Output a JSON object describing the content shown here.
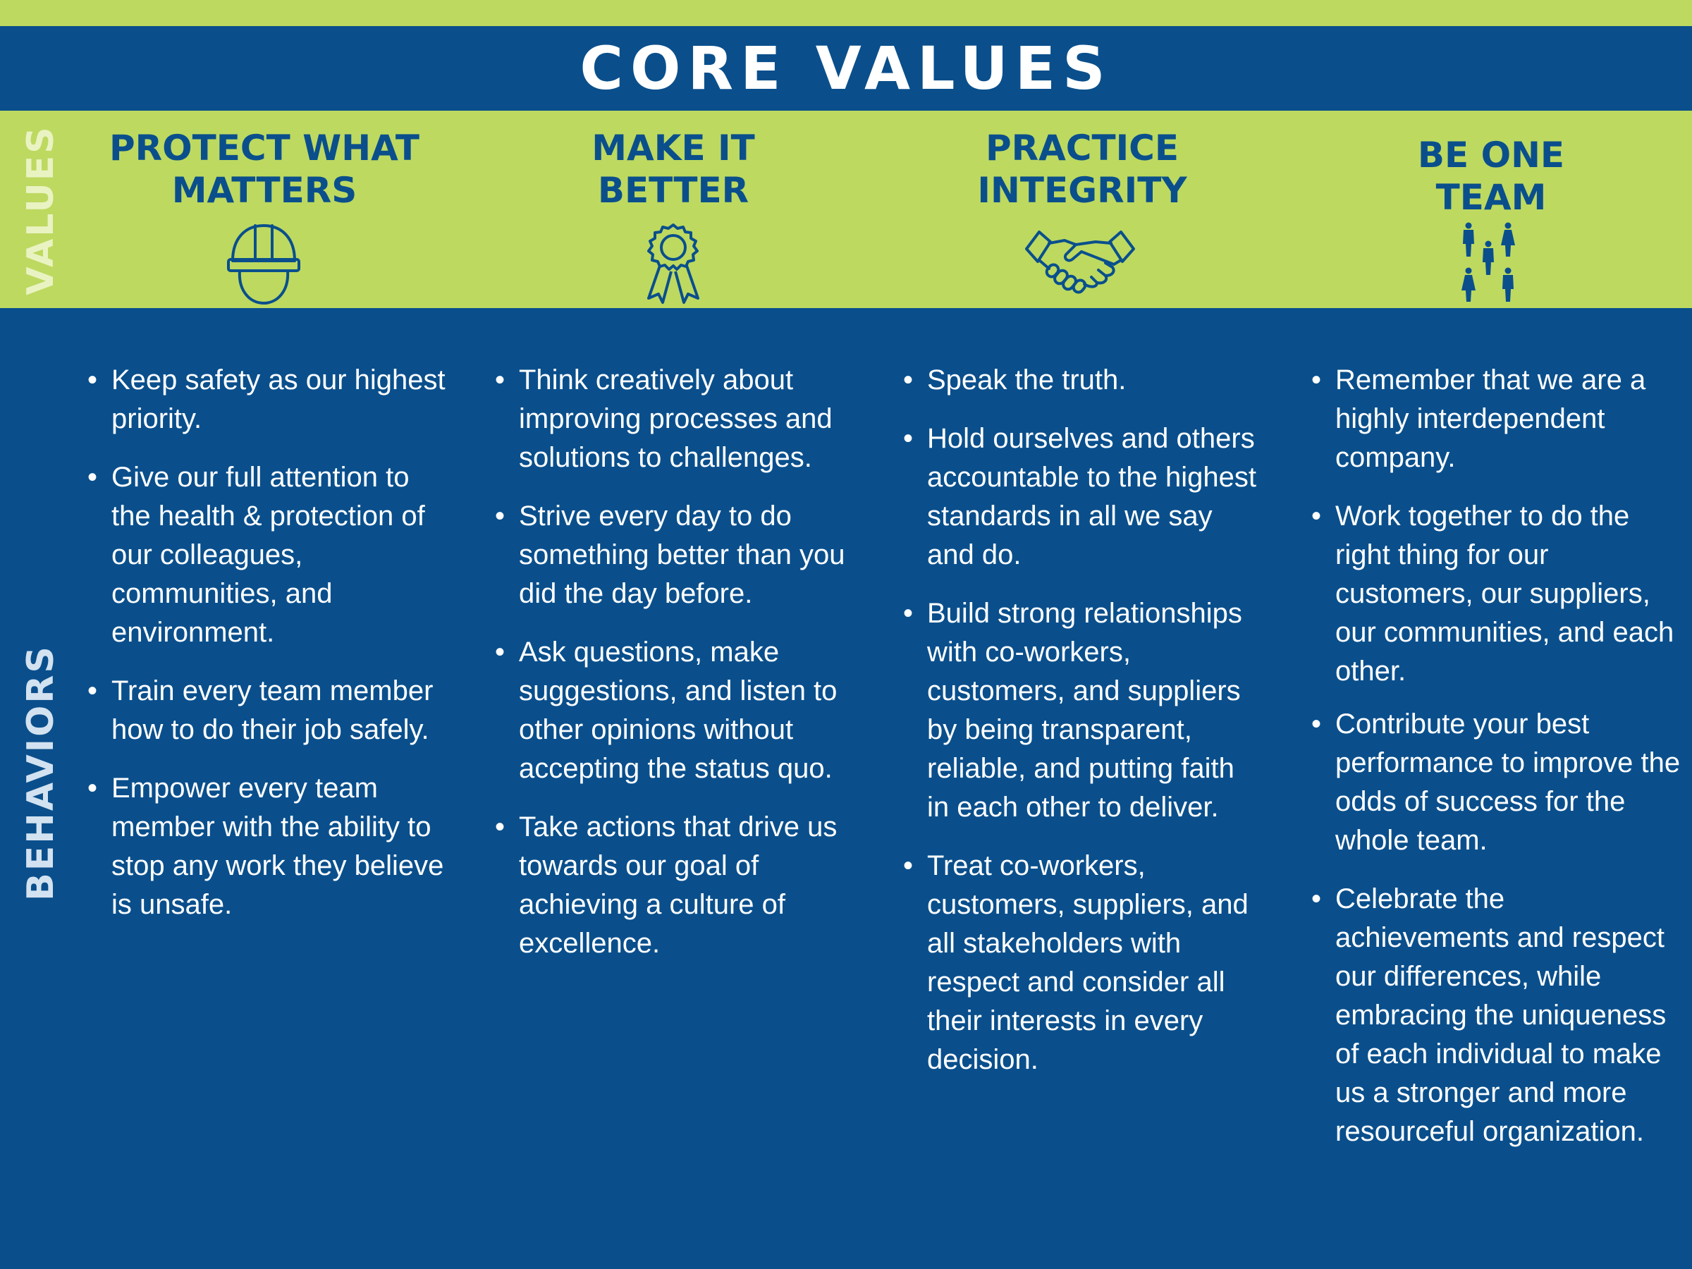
{
  "title": "CORE VALUES",
  "side_labels": {
    "values": "VALUES",
    "behaviors": "BEHAVIORS"
  },
  "colors": {
    "navy": "#0a4f8c",
    "lime": "#bdd960",
    "white": "#ffffff"
  },
  "columns": [
    {
      "value": "PROTECT WHAT\nMATTERS",
      "icon": "hard-hat-icon",
      "behaviors": [
        "Keep safety as our highest priority.",
        "Give our full attention to the health & protection of our colleagues, communities, and environment.",
        "Train every team member how to do their job safely.",
        "Empower every team member with the ability to stop any work they believe is unsafe."
      ]
    },
    {
      "value": "MAKE IT\nBETTER",
      "icon": "award-ribbon-icon",
      "behaviors": [
        "Think creatively about improving processes and solutions to challenges.",
        "Strive every day to do something better than you did the day before.",
        "Ask questions, make suggestions, and listen to other opinions without accepting the status quo.",
        "Take actions that drive us towards our goal of achieving a culture of excellence."
      ]
    },
    {
      "value": "PRACTICE\nINTEGRITY",
      "icon": "handshake-icon",
      "behaviors": [
        "Speak the truth.",
        "Hold ourselves and others accountable to the highest standards in all we say and do.",
        "Build strong relationships with co-workers, customers, and suppliers by being transparent, reliable, and putting faith in each other to deliver.",
        "Treat co-workers, customers, suppliers, and all stakeholders with respect and consider all their interests in every decision."
      ]
    },
    {
      "value": "BE ONE\nTEAM",
      "icon": "team-people-icon",
      "behaviors": [
        "Remember that we are a highly interdependent company.",
        "Work together to do the right thing for our customers, our suppliers, our communities, and each other.",
        "Contribute your best performance to improve the odds of success for the whole team.",
        "Celebrate the achievements and respect our differences, while embracing the uniqueness of each individual to make us a stronger and more resourceful organization."
      ]
    }
  ]
}
